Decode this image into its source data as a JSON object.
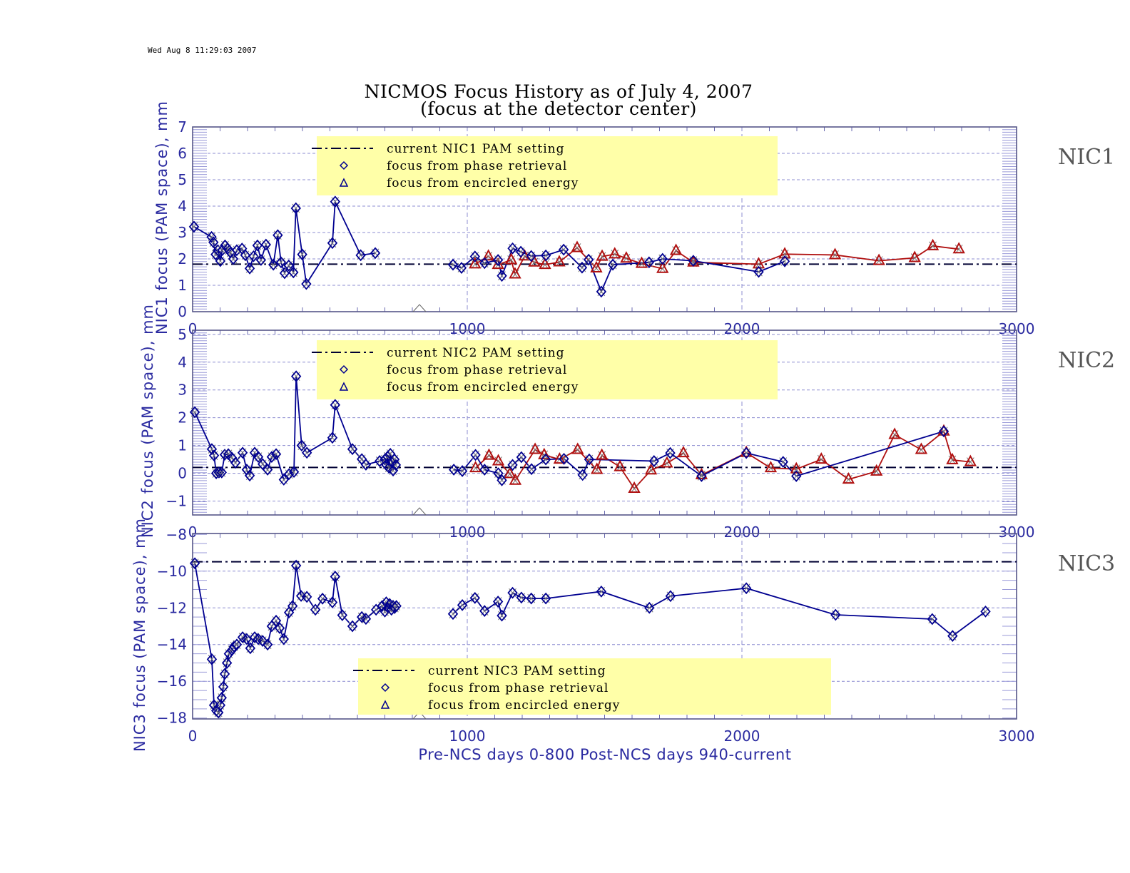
{
  "timestamp": "Wed Aug  8 11:29:03 2007",
  "title_line1": "NICMOS Focus History as of July 4, 2007",
  "title_line2": "(focus at the detector center)",
  "colors": {
    "axis": "#2a2aa0",
    "phase": "#000090",
    "encircled": "#b01010",
    "legend_bg": "#ffffa8",
    "grid": "#8c8cd0",
    "pam": "#000033"
  },
  "chart_data": [
    {
      "type": "scatter",
      "panel_label": "NIC1",
      "ylabel": "NIC1 focus (PAM space), mm",
      "xlabel": "",
      "xlim": [
        0,
        3000
      ],
      "ylim": [
        0,
        7
      ],
      "xticks": [
        0,
        1000,
        2000,
        3000
      ],
      "yticks": [
        0,
        1,
        2,
        3,
        4,
        5,
        6,
        7
      ],
      "grid": true,
      "legend_placement": "top-center",
      "legend": [
        "current NIC1 PAM setting",
        "focus from phase retrieval",
        "focus from encircled energy"
      ],
      "pam_setting": 1.8,
      "phase_pre": [
        [
          5,
          3.22
        ],
        [
          69,
          2.83
        ],
        [
          76,
          2.63
        ],
        [
          84,
          2.17
        ],
        [
          92,
          2.33
        ],
        [
          101,
          1.92
        ],
        [
          108,
          2.33
        ],
        [
          118,
          2.51
        ],
        [
          128,
          2.39
        ],
        [
          138,
          2.24
        ],
        [
          148,
          2.0
        ],
        [
          161,
          2.33
        ],
        [
          180,
          2.39
        ],
        [
          192,
          2.14
        ],
        [
          208,
          1.64
        ],
        [
          222,
          2.1
        ],
        [
          236,
          2.51
        ],
        [
          249,
          1.96
        ],
        [
          267,
          2.54
        ],
        [
          294,
          1.78
        ],
        [
          310,
          2.9
        ],
        [
          322,
          1.87
        ],
        [
          335,
          1.46
        ],
        [
          350,
          1.75
        ],
        [
          367,
          1.49
        ],
        [
          376,
          3.92
        ],
        [
          399,
          2.17
        ],
        [
          414,
          1.05
        ],
        [
          509,
          2.6
        ],
        [
          519,
          4.17
        ],
        [
          612,
          2.14
        ],
        [
          665,
          2.22
        ]
      ],
      "phase_post": [
        [
          948,
          1.78
        ],
        [
          979,
          1.66
        ],
        [
          1028,
          2.09
        ],
        [
          1063,
          1.84
        ],
        [
          1112,
          1.96
        ],
        [
          1126,
          1.36
        ],
        [
          1165,
          2.4
        ],
        [
          1195,
          2.27
        ],
        [
          1233,
          2.11
        ],
        [
          1286,
          2.13
        ],
        [
          1351,
          2.35
        ],
        [
          1418,
          1.67
        ],
        [
          1442,
          1.97
        ],
        [
          1488,
          0.76
        ],
        [
          1530,
          1.78
        ],
        [
          1662,
          1.87
        ],
        [
          1711,
          2.0
        ],
        [
          1823,
          1.93
        ],
        [
          2061,
          1.51
        ],
        [
          2156,
          1.91
        ]
      ],
      "encircled": [
        [
          1028,
          1.8
        ],
        [
          1077,
          2.1
        ],
        [
          1112,
          1.78
        ],
        [
          1160,
          1.96
        ],
        [
          1174,
          1.42
        ],
        [
          1209,
          2.1
        ],
        [
          1244,
          1.87
        ],
        [
          1283,
          1.78
        ],
        [
          1335,
          1.88
        ],
        [
          1400,
          2.42
        ],
        [
          1470,
          1.65
        ],
        [
          1491,
          2.09
        ],
        [
          1537,
          2.18
        ],
        [
          1579,
          2.02
        ],
        [
          1635,
          1.82
        ],
        [
          1711,
          1.63
        ],
        [
          1760,
          2.31
        ],
        [
          1823,
          1.87
        ],
        [
          2061,
          1.8
        ],
        [
          2156,
          2.18
        ],
        [
          2339,
          2.15
        ],
        [
          2499,
          1.93
        ],
        [
          2629,
          2.04
        ],
        [
          2695,
          2.49
        ],
        [
          2790,
          2.37
        ]
      ]
    },
    {
      "type": "scatter",
      "panel_label": "NIC2",
      "ylabel": "NIC2 focus (PAM space), mm",
      "xlabel": "",
      "xlim": [
        0,
        3000
      ],
      "ylim": [
        -1.5,
        5.15
      ],
      "xticks": [
        0,
        1000,
        2000,
        3000
      ],
      "yticks": [
        -1,
        0,
        1,
        2,
        3,
        4,
        5
      ],
      "grid": true,
      "legend_placement": "top-center",
      "legend": [
        "current NIC2 PAM setting",
        "focus from phase retrieval",
        "focus from encircled energy"
      ],
      "pam_setting": 0.21,
      "phase_pre": [
        [
          8,
          2.2
        ],
        [
          70,
          0.87
        ],
        [
          78,
          0.64
        ],
        [
          86,
          0.0
        ],
        [
          96,
          0.03
        ],
        [
          106,
          0.03
        ],
        [
          117,
          0.67
        ],
        [
          130,
          0.69
        ],
        [
          143,
          0.56
        ],
        [
          156,
          0.38
        ],
        [
          182,
          0.74
        ],
        [
          197,
          0.13
        ],
        [
          208,
          -0.08
        ],
        [
          226,
          0.74
        ],
        [
          239,
          0.59
        ],
        [
          255,
          0.33
        ],
        [
          273,
          0.13
        ],
        [
          288,
          0.59
        ],
        [
          304,
          0.69
        ],
        [
          332,
          -0.23
        ],
        [
          351,
          -0.03
        ],
        [
          369,
          0.05
        ],
        [
          377,
          3.49
        ],
        [
          397,
          1.0
        ],
        [
          416,
          0.74
        ],
        [
          509,
          1.28
        ],
        [
          519,
          2.46
        ],
        [
          582,
          0.87
        ],
        [
          616,
          0.51
        ],
        [
          631,
          0.31
        ],
        [
          681,
          0.44
        ],
        [
          700,
          0.5
        ],
        [
          705,
          0.3
        ],
        [
          710,
          0.6
        ],
        [
          715,
          0.2
        ],
        [
          720,
          0.7
        ],
        [
          725,
          0.4
        ],
        [
          730,
          0.1
        ],
        [
          735,
          0.5
        ],
        [
          740,
          0.3
        ]
      ],
      "phase_post": [
        [
          951,
          0.13
        ],
        [
          982,
          0.08
        ],
        [
          1030,
          0.66
        ],
        [
          1063,
          0.13
        ],
        [
          1113,
          0.0
        ],
        [
          1126,
          -0.25
        ],
        [
          1165,
          0.3
        ],
        [
          1197,
          0.58
        ],
        [
          1234,
          0.15
        ],
        [
          1286,
          0.5
        ],
        [
          1352,
          0.52
        ],
        [
          1420,
          -0.06
        ],
        [
          1444,
          0.5
        ],
        [
          1680,
          0.44
        ],
        [
          1739,
          0.73
        ],
        [
          1853,
          -0.1
        ],
        [
          2016,
          0.73
        ],
        [
          2150,
          0.41
        ],
        [
          2198,
          -0.1
        ],
        [
          2735,
          1.51
        ]
      ],
      "encircled": [
        [
          1030,
          0.19
        ],
        [
          1079,
          0.64
        ],
        [
          1113,
          0.44
        ],
        [
          1155,
          -0.02
        ],
        [
          1175,
          -0.26
        ],
        [
          1247,
          0.85
        ],
        [
          1280,
          0.66
        ],
        [
          1336,
          0.5
        ],
        [
          1402,
          0.85
        ],
        [
          1472,
          0.13
        ],
        [
          1490,
          0.64
        ],
        [
          1556,
          0.23
        ],
        [
          1608,
          -0.55
        ],
        [
          1669,
          0.11
        ],
        [
          1727,
          0.36
        ],
        [
          1787,
          0.73
        ],
        [
          1853,
          -0.06
        ],
        [
          2016,
          0.74
        ],
        [
          2105,
          0.19
        ],
        [
          2198,
          0.15
        ],
        [
          2289,
          0.5
        ],
        [
          2388,
          -0.22
        ],
        [
          2490,
          0.07
        ],
        [
          2556,
          1.39
        ],
        [
          2653,
          0.85
        ],
        [
          2735,
          1.51
        ],
        [
          2766,
          0.48
        ],
        [
          2832,
          0.41
        ]
      ]
    },
    {
      "type": "scatter",
      "panel_label": "NIC3",
      "ylabel": "NIC3 focus (PAM space), mm",
      "xlabel": "Pre-NCS days 0-800  Post-NCS days 940-current",
      "xlim": [
        0,
        3000
      ],
      "ylim": [
        -18.05,
        -7.95
      ],
      "xticks": [
        0,
        1000,
        2000,
        3000
      ],
      "yticks": [
        -18,
        -16,
        -14,
        -12,
        -10,
        -8
      ],
      "grid": true,
      "legend_placement": "bottom-center",
      "legend": [
        "current NIC3 PAM setting",
        "focus from phase retrieval",
        "focus from encircled energy"
      ],
      "pam_setting": -9.49,
      "phase_pre": [
        [
          8,
          -9.57
        ],
        [
          70,
          -14.8
        ],
        [
          78,
          -17.3
        ],
        [
          86,
          -17.6
        ],
        [
          94,
          -17.7
        ],
        [
          101,
          -17.3
        ],
        [
          106,
          -16.9
        ],
        [
          112,
          -16.3
        ],
        [
          117,
          -15.6
        ],
        [
          125,
          -15.0
        ],
        [
          132,
          -14.5
        ],
        [
          143,
          -14.3
        ],
        [
          151,
          -14.1
        ],
        [
          161,
          -14.0
        ],
        [
          182,
          -13.6
        ],
        [
          197,
          -13.7
        ],
        [
          210,
          -14.2
        ],
        [
          226,
          -13.6
        ],
        [
          239,
          -13.7
        ],
        [
          255,
          -13.8
        ],
        [
          273,
          -14.0
        ],
        [
          288,
          -13.0
        ],
        [
          304,
          -12.7
        ],
        [
          317,
          -13.1
        ],
        [
          332,
          -13.7
        ],
        [
          351,
          -12.25
        ],
        [
          364,
          -11.9
        ],
        [
          377,
          -9.7
        ],
        [
          395,
          -11.35
        ],
        [
          416,
          -11.4
        ],
        [
          447,
          -12.1
        ],
        [
          473,
          -11.5
        ],
        [
          509,
          -11.7
        ],
        [
          519,
          -10.3
        ],
        [
          545,
          -12.4
        ],
        [
          582,
          -13.0
        ],
        [
          616,
          -12.5
        ],
        [
          631,
          -12.6
        ],
        [
          668,
          -12.1
        ],
        [
          690,
          -11.9
        ],
        [
          700,
          -12.2
        ],
        [
          705,
          -11.7
        ],
        [
          712,
          -12.0
        ],
        [
          718,
          -11.8
        ],
        [
          724,
          -12.1
        ],
        [
          730,
          -11.9
        ],
        [
          736,
          -12.0
        ],
        [
          742,
          -11.9
        ]
      ],
      "phase_post": [
        [
          948,
          -12.33
        ],
        [
          982,
          -11.85
        ],
        [
          1028,
          -11.46
        ],
        [
          1063,
          -12.17
        ],
        [
          1112,
          -11.66
        ],
        [
          1126,
          -12.42
        ],
        [
          1165,
          -11.18
        ],
        [
          1197,
          -11.44
        ],
        [
          1233,
          -11.49
        ],
        [
          1286,
          -11.49
        ],
        [
          1488,
          -11.11
        ],
        [
          1663,
          -12.0
        ],
        [
          1740,
          -11.36
        ],
        [
          2016,
          -10.93
        ],
        [
          2341,
          -12.38
        ],
        [
          2693,
          -12.61
        ],
        [
          2767,
          -13.53
        ],
        [
          2887,
          -12.2
        ]
      ],
      "encircled": []
    }
  ]
}
